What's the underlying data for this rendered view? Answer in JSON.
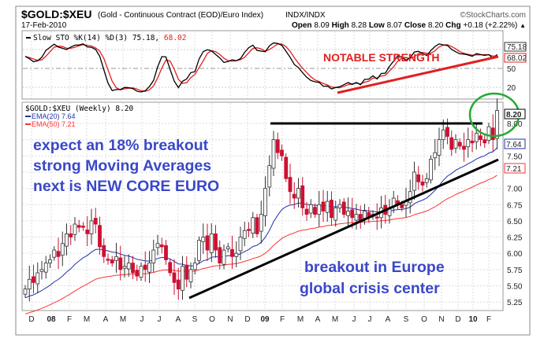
{
  "header": {
    "symbol": "$GOLD:$XEU",
    "description": "(Gold - Continuous Contract (EOD)/Euro Index)",
    "exchange": "INDX/INDX",
    "brand": "©StockCharts.com",
    "date": "17-Feb-2010",
    "open_label": "Open",
    "open": "8.09",
    "high_label": "High",
    "high": "8.28",
    "low_label": "Low",
    "low": "8.07",
    "close_label": "Close",
    "close": "8.20",
    "chg_label": "Chg",
    "chg": "+0.18 (+2.22%)",
    "chg_arrow": "▲"
  },
  "colors": {
    "up": "#ffffff",
    "down": "#cc1133",
    "ema20": "#2233aa",
    "ema50": "#ff3333",
    "annotation": "#3a48c8",
    "circle": "#22aa33"
  },
  "chart_data": [
    {
      "type": "line",
      "title": "Slow STO %K(14) %D(3)",
      "legend_k": "Slow STO %K(14) %D(3) 75.18,",
      "legend_d": "68.02",
      "k_last": "75.18",
      "d_last": "68.02",
      "ylim": [
        0,
        100
      ],
      "ytick_labels": [
        "50",
        "20"
      ],
      "annotation": "NOTABLE STRENGTH"
    },
    {
      "type": "candlestick",
      "title": "$GOLD:$XEU (Weekly) 8.20",
      "legend_ema20": "EMA(20) 7.64",
      "legend_ema50": "EMA(50) 7.21",
      "last_price": "8.20",
      "ema20_last": "7.64",
      "ema50_last": "7.21",
      "ylim": [
        5.15,
        8.35
      ],
      "ytick_labels": [
        "8.00",
        "7.75",
        "7.50",
        "7.25",
        "7.00",
        "6.75",
        "6.50",
        "6.25",
        "6.00",
        "5.75",
        "5.50",
        "5.25"
      ],
      "ytick_values": [
        8.0,
        7.75,
        7.5,
        7.25,
        7.0,
        6.75,
        6.5,
        6.25,
        6.0,
        5.75,
        5.5,
        5.25
      ],
      "xtick_labels": [
        "D",
        "08",
        "F",
        "M",
        "A",
        "M",
        "J",
        "J",
        "A",
        "S",
        "O",
        "N",
        "D",
        "09",
        "F",
        "M",
        "A",
        "M",
        "J",
        "J",
        "A",
        "S",
        "O",
        "N",
        "D",
        "10",
        "F"
      ],
      "xtick_bold": [
        "08",
        "09",
        "10"
      ],
      "weekly_close": [
        5.45,
        5.6,
        5.55,
        5.7,
        5.75,
        5.85,
        5.9,
        6.05,
        5.95,
        6.15,
        6.3,
        6.25,
        6.45,
        6.4,
        6.4,
        6.3,
        6.5,
        6.45,
        6.1,
        5.95,
        5.9,
        5.85,
        5.95,
        5.75,
        5.8,
        5.85,
        5.7,
        5.65,
        5.8,
        5.75,
        5.85,
        6.05,
        6.15,
        6.1,
        5.9,
        5.7,
        5.55,
        5.45,
        5.8,
        5.6,
        5.75,
        5.85,
        6.2,
        6.25,
        6.05,
        6.3,
        6.05,
        5.85,
        6.05,
        6.1,
        5.95,
        6.0,
        6.25,
        6.35,
        6.35,
        6.55,
        6.3,
        6.6,
        7.0,
        7.35,
        7.75,
        7.55,
        7.5,
        7.15,
        6.95,
        6.85,
        7.0,
        6.7,
        6.6,
        6.75,
        6.6,
        6.75,
        6.65,
        6.8,
        6.55,
        6.7,
        6.75,
        6.6,
        6.65,
        6.55,
        6.6,
        6.5,
        6.65,
        6.55,
        6.6,
        6.55,
        6.7,
        6.6,
        6.7,
        6.85,
        6.75,
        6.7,
        6.8,
        6.95,
        7.25,
        7.1,
        7.05,
        7.15,
        7.45,
        7.55,
        7.75,
        7.9,
        7.8,
        7.6,
        7.75,
        7.65,
        7.6,
        7.75,
        7.7,
        7.85,
        7.75,
        7.7,
        7.95,
        7.75,
        8.2
      ],
      "ema_seed": {
        "ema20": 5.3,
        "ema50": 5.05
      },
      "resistance_level": 8.0,
      "annotations": {
        "left": [
          "expect an 18% breakout",
          "strong Moving Averages",
          "next is NEW CORE EURO"
        ],
        "right": [
          "breakout in Europe",
          "global crisis center"
        ]
      }
    }
  ]
}
